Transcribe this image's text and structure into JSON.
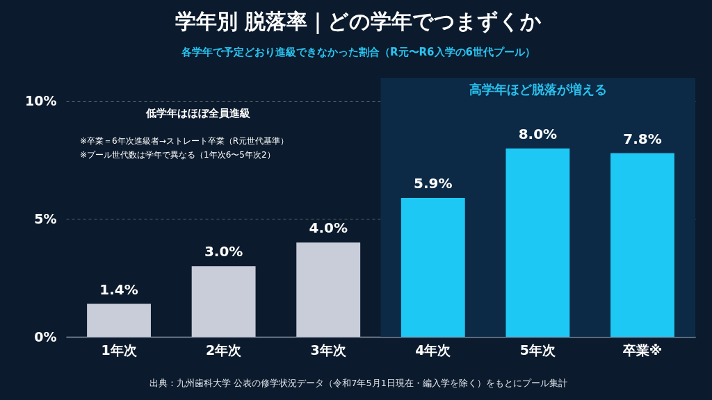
{
  "chart_data": {
    "type": "bar",
    "title": "学年別 脱落率｜どの学年でつまずくか",
    "subtitle": "各学年で予定どおり進級できなかった割合（R元〜R6入学の6世代プール）",
    "categories": [
      "1年次",
      "2年次",
      "3年次",
      "4年次",
      "5年次",
      "卒業※"
    ],
    "values": [
      1.4,
      3.0,
      4.0,
      5.9,
      8.0,
      7.8
    ],
    "colors": [
      "#c9cdd9",
      "#c9cdd9",
      "#c9cdd9",
      "#1ec8f5",
      "#1ec8f5",
      "#1ec8f5"
    ],
    "value_labels": [
      "1.4%",
      "3.0%",
      "4.0%",
      "5.9%",
      "8.0%",
      "7.8%"
    ],
    "ylim": [
      0,
      11
    ],
    "yticks": [
      {
        "value": 0,
        "label": "0%"
      },
      {
        "value": 5,
        "label": "5%"
      },
      {
        "value": 10,
        "label": "10%"
      }
    ],
    "grid": "y",
    "bands": [
      {
        "axis": "x",
        "from": "4年次",
        "to": "卒業※",
        "label": "高学年ほど脱落が増える",
        "color": "#0c2a46"
      }
    ],
    "annotations": [
      "低学年はほぼ全員進級",
      "※卒業＝6年次進級者→ストレート卒業（R元世代基準）",
      "※プール世代数は学年で異なる（1年次6〜5年次2）",
      "出典：九州歯科大学 公表の修学状況データ（令和7年5月1日現在・編入学を除く）をもとにプール集計"
    ]
  }
}
